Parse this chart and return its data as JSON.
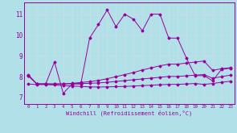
{
  "xlabel": "Windchill (Refroidissement éolien,°C)",
  "bg_color": "#b2e0e8",
  "line_color": "#990099",
  "grid_color": "#c8dfe3",
  "ylim": [
    6.7,
    11.55
  ],
  "xlim": [
    -0.5,
    23.5
  ],
  "yticks": [
    7,
    8,
    9,
    10,
    11
  ],
  "xticks": [
    0,
    1,
    2,
    3,
    4,
    5,
    6,
    7,
    8,
    9,
    10,
    11,
    12,
    13,
    14,
    15,
    16,
    17,
    18,
    19,
    20,
    21,
    22,
    23
  ],
  "line1_x": [
    0,
    1,
    2,
    3,
    4,
    5,
    6,
    7,
    8,
    9,
    10,
    11,
    12,
    13,
    14,
    15,
    16,
    17,
    18,
    19,
    20,
    21,
    22,
    23
  ],
  "line1_y": [
    8.1,
    7.65,
    7.65,
    8.7,
    7.2,
    7.65,
    7.65,
    9.85,
    10.5,
    11.2,
    10.4,
    11.0,
    10.75,
    10.2,
    11.0,
    11.0,
    9.85,
    9.85,
    8.9,
    8.05,
    8.05,
    7.8,
    8.35,
    8.4
  ],
  "line2_x": [
    0,
    1,
    2,
    3,
    4,
    5,
    6,
    7,
    8,
    9,
    10,
    11,
    12,
    13,
    14,
    15,
    16,
    17,
    18,
    19,
    20,
    21,
    22,
    23
  ],
  "line2_y": [
    8.05,
    7.65,
    7.65,
    7.65,
    7.65,
    7.68,
    7.72,
    7.76,
    7.82,
    7.9,
    8.0,
    8.1,
    8.2,
    8.32,
    8.42,
    8.52,
    8.6,
    8.6,
    8.65,
    8.7,
    8.75,
    8.3,
    8.38,
    8.43
  ],
  "line3_x": [
    0,
    1,
    2,
    3,
    4,
    5,
    6,
    7,
    8,
    9,
    10,
    11,
    12,
    13,
    14,
    15,
    16,
    17,
    18,
    19,
    20,
    21,
    22,
    23
  ],
  "line3_y": [
    8.05,
    7.65,
    7.65,
    7.65,
    7.65,
    7.66,
    7.67,
    7.68,
    7.7,
    7.73,
    7.77,
    7.81,
    7.85,
    7.89,
    7.93,
    7.97,
    8.01,
    8.01,
    8.04,
    8.07,
    8.1,
    7.92,
    8.0,
    8.07
  ],
  "line4_x": [
    0,
    1,
    2,
    3,
    4,
    5,
    6,
    7,
    8,
    9,
    10,
    11,
    12,
    13,
    14,
    15,
    16,
    17,
    18,
    19,
    20,
    21,
    22,
    23
  ],
  "line4_y": [
    7.65,
    7.62,
    7.62,
    7.6,
    7.57,
    7.55,
    7.53,
    7.51,
    7.5,
    7.51,
    7.52,
    7.53,
    7.55,
    7.57,
    7.59,
    7.61,
    7.63,
    7.63,
    7.65,
    7.67,
    7.63,
    7.67,
    7.73,
    7.78
  ]
}
